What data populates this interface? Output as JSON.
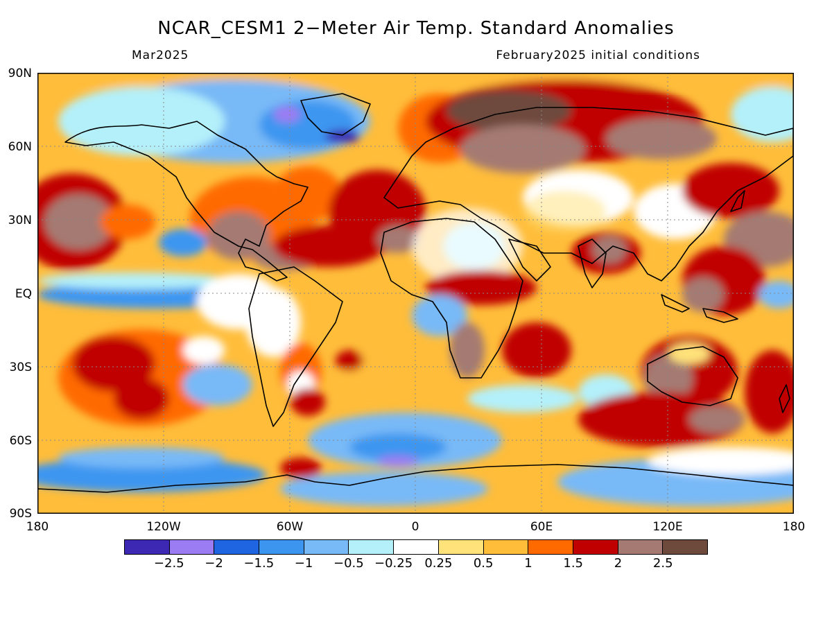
{
  "title": "NCAR_CESM1 2−Meter Air Temp. Standard Anomalies",
  "valid_month": "Mar2025",
  "init_conditions": "February2025 initial conditions",
  "lat_labels": [
    "90N",
    "60N",
    "30N",
    "EQ",
    "30S",
    "60S",
    "90S"
  ],
  "lon_labels": [
    "180",
    "120W",
    "60W",
    "0",
    "60E",
    "120E",
    "180"
  ],
  "colorbar": {
    "colors": [
      "#3d28b4",
      "#9b7cf2",
      "#1f64e0",
      "#3c96f0",
      "#78b9f7",
      "#b4f0fa",
      "#ffffff",
      "#ffe27a",
      "#ffbd3a",
      "#ff6a00",
      "#c00000",
      "#a47a72",
      "#6e4a3c"
    ],
    "labels": [
      "−2.5",
      "−2",
      "−1.5",
      "−1",
      "−0.5",
      "−0.25",
      "0.25",
      "0.5",
      "1",
      "1.5",
      "2",
      "2.5"
    ]
  }
}
